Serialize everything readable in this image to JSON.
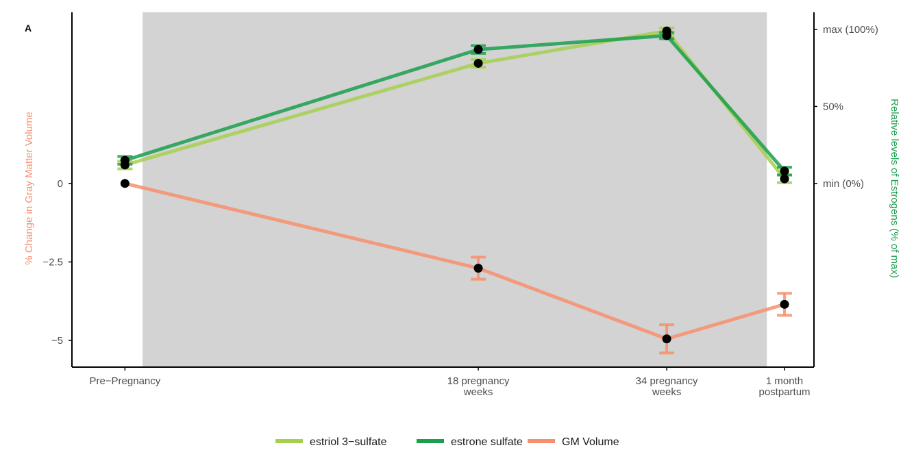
{
  "panel_label": "A",
  "colors": {
    "estriol": "#a6cf4e",
    "estrone": "#1a9f4c",
    "gm": "#f88f6c",
    "shade": "#d3d3d3",
    "axis": "#000000",
    "tick_text": "#4d4d4d"
  },
  "chart_data": {
    "type": "line",
    "categories": [
      "Pre−Pregnancy",
      "18 pregnancy weeks",
      "34 pregnancy weeks",
      "1 month postpartum"
    ],
    "category_labels": [
      [
        "Pre−Pregnancy"
      ],
      [
        "18 pregnancy",
        "weeks"
      ],
      [
        "34 pregnancy",
        "weeks"
      ],
      [
        "1 month",
        "postpartum"
      ]
    ],
    "x_weeks": [
      -12,
      18,
      34,
      44
    ],
    "xlim_weeks": [
      -16.5,
      46.5
    ],
    "shaded_interval_weeks": [
      -10.5,
      42.5
    ],
    "left_axis": {
      "title": "% Change in Gray Matter Volume",
      "ticks": [
        0,
        -2.5,
        -5
      ],
      "tick_labels": [
        "0",
        "−2.5",
        "−5"
      ],
      "ylim": [
        -5.85,
        5.45
      ]
    },
    "right_axis": {
      "title": "Relative levels of Estrogens (% of max)",
      "ticks": [
        0,
        50,
        100
      ],
      "tick_labels": [
        "min (0%)",
        "50%",
        "max (100%)"
      ]
    },
    "series": [
      {
        "name": "estriol 3−sulfate",
        "axis": "right",
        "color_key": "estriol",
        "values": [
          12,
          78,
          99,
          3
        ],
        "errors": [
          2.5,
          2.5,
          2,
          2.5
        ]
      },
      {
        "name": "estrone sulfate",
        "axis": "right",
        "color_key": "estrone",
        "values": [
          15,
          87,
          96,
          8
        ],
        "errors": [
          2.5,
          2.5,
          2,
          2.5
        ]
      },
      {
        "name": "GM Volume",
        "axis": "left",
        "color_key": "gm",
        "values": [
          0,
          -2.7,
          -4.95,
          -3.85
        ],
        "errors": [
          0,
          0.35,
          0.45,
          0.35
        ]
      }
    ],
    "grid": false,
    "legend_position": "bottom"
  }
}
